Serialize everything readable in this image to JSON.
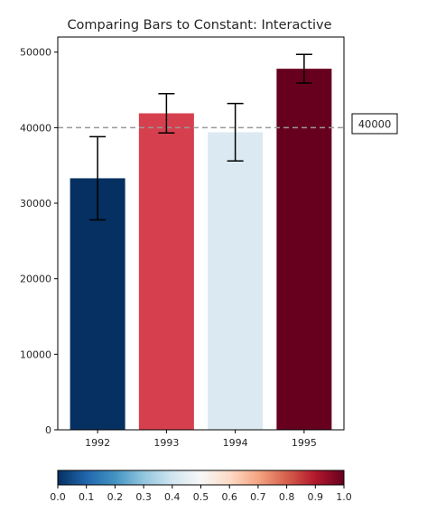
{
  "chart_data": {
    "type": "bar",
    "title": "Comparing Bars to Constant: Interactive",
    "xlabel": "",
    "ylabel": "",
    "categories": [
      "1992",
      "1993",
      "1994",
      "1995"
    ],
    "values": [
      33300,
      41900,
      39400,
      47800
    ],
    "errors": [
      5500,
      2600,
      3800,
      1900
    ],
    "bar_colors": [
      "#053061",
      "#d6404e",
      "#dbeaf2",
      "#67001f"
    ],
    "ylim": [
      0,
      52000
    ],
    "yticks": [
      0,
      10000,
      20000,
      30000,
      40000,
      50000
    ],
    "reference_line": {
      "value": 40000,
      "label": "40000",
      "color": "#999999",
      "style": "dashed"
    },
    "grid": false,
    "colorbar": {
      "orientation": "horizontal",
      "colormap": "RdBu_r",
      "range": [
        0,
        1
      ],
      "ticks": [
        "0.0",
        "0.1",
        "0.2",
        "0.3",
        "0.4",
        "0.5",
        "0.6",
        "0.7",
        "0.8",
        "0.9",
        "1.0"
      ],
      "stops": [
        "#053061",
        "#2166ac",
        "#4393c3",
        "#92c5de",
        "#d1e5f0",
        "#f7f7f7",
        "#fddbc7",
        "#f4a582",
        "#d6604d",
        "#b2182b",
        "#67001f"
      ]
    }
  }
}
